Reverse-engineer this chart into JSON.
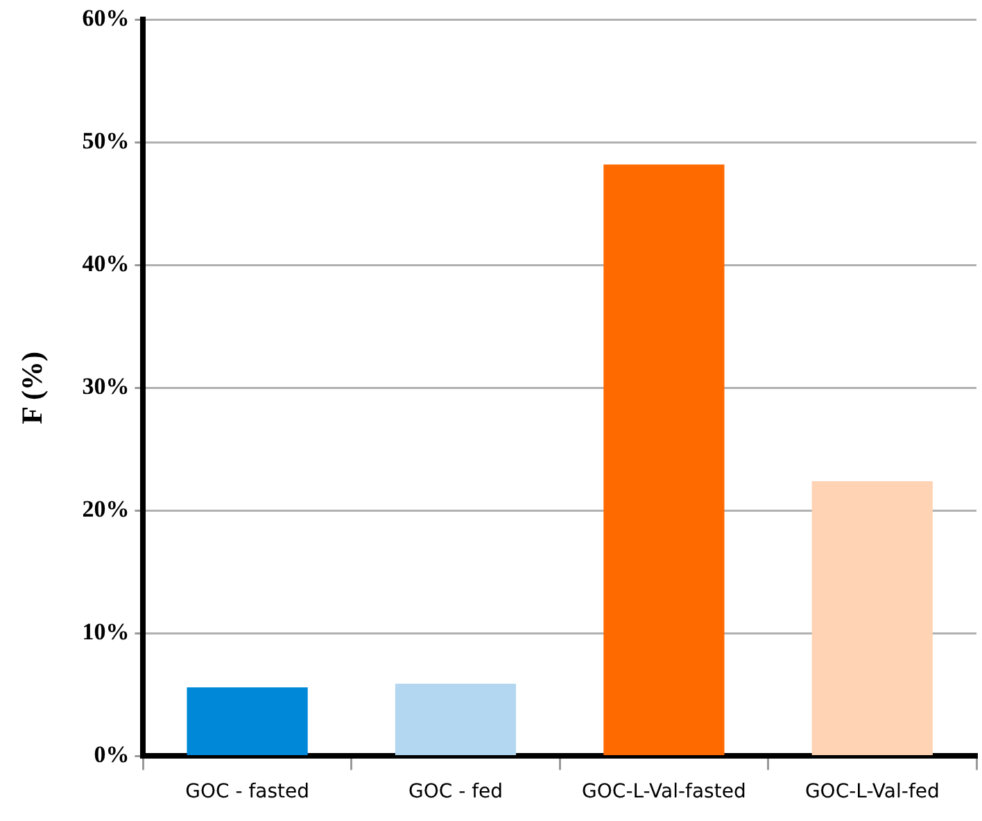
{
  "chart_data": {
    "type": "bar",
    "ylabel": "F (%)",
    "categories": [
      "GOC - fasted",
      "GOC - fed",
      "GOC-L-Val-fasted",
      "GOC-L-Val-fed"
    ],
    "values": [
      5.6,
      5.9,
      48.2,
      22.4
    ],
    "colors": [
      "#0088d8",
      "#b3d7f0",
      "#ff6a00",
      "#ffd3b3"
    ],
    "ylim": [
      0,
      60
    ],
    "yticks": [
      {
        "value": 0,
        "label": "0%"
      },
      {
        "value": 10,
        "label": "10%"
      },
      {
        "value": 20,
        "label": "20%"
      },
      {
        "value": 30,
        "label": "30%"
      },
      {
        "value": 40,
        "label": "40%"
      },
      {
        "value": 50,
        "label": "50%"
      },
      {
        "value": 60,
        "label": "60%"
      }
    ],
    "grid": "y",
    "legend": false
  }
}
